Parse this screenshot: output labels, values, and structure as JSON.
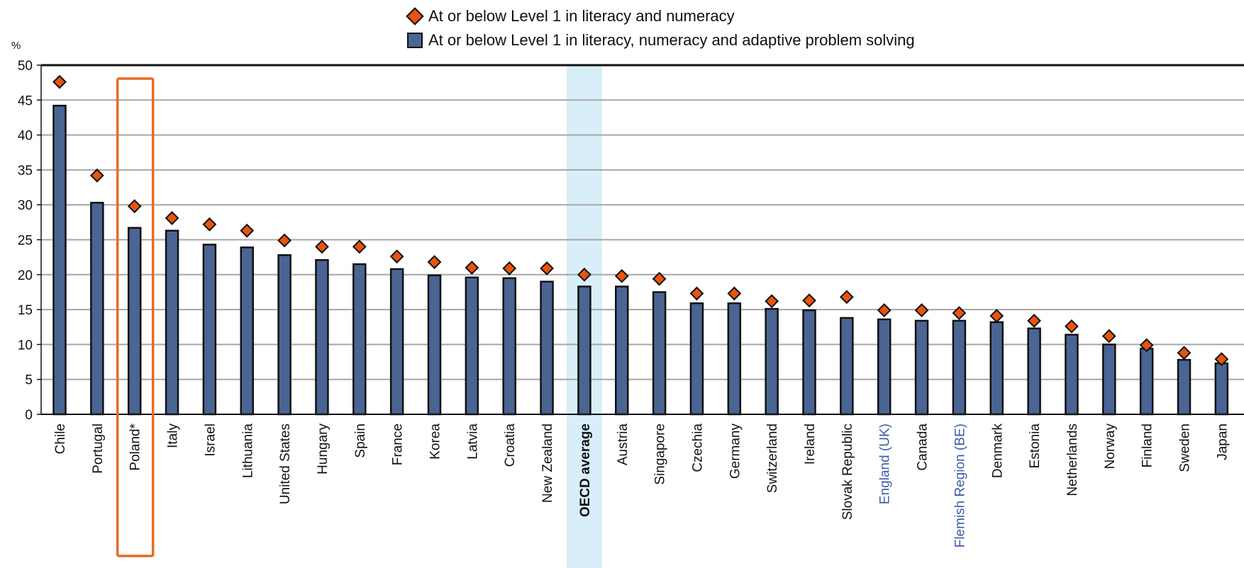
{
  "chart_data": {
    "type": "bar",
    "unit_label": "%",
    "ylim": [
      0,
      50
    ],
    "yticks": [
      0,
      5,
      10,
      15,
      20,
      25,
      30,
      35,
      40,
      45,
      50
    ],
    "grid": true,
    "legend_placement": "top-center",
    "highlighted_category": "Poland*",
    "average_category": "OECD average",
    "blue_label_categories": [
      "England (UK)",
      "Flemish Region (BE)"
    ],
    "categories": [
      "Chile",
      "Portugal",
      "Poland*",
      "Italy",
      "Israel",
      "Lithuania",
      "United States",
      "Hungary",
      "Spain",
      "France",
      "Korea",
      "Latvia",
      "Croatia",
      "New Zealand",
      "OECD average",
      "Austria",
      "Singapore",
      "Czechia",
      "Germany",
      "Switzerland",
      "Ireland",
      "Slovak Republic",
      "England (UK)",
      "Canada",
      "Flemish Region (BE)",
      "Denmark",
      "Estonia",
      "Netherlands",
      "Norway",
      "Finland",
      "Sweden",
      "Japan"
    ],
    "series": [
      {
        "name": "At or below Level 1 in literacy, numeracy and adaptive problem solving",
        "marker": "bar",
        "color": "#4a6593",
        "values": [
          44.2,
          30.3,
          26.7,
          26.3,
          24.3,
          23.9,
          22.8,
          22.1,
          21.5,
          20.8,
          19.9,
          19.6,
          19.5,
          19.0,
          18.3,
          18.3,
          17.5,
          15.9,
          15.9,
          15.1,
          14.9,
          13.8,
          13.6,
          13.4,
          13.4,
          13.2,
          12.3,
          11.4,
          10.0,
          9.4,
          7.8,
          7.3
        ]
      },
      {
        "name": "At or below Level 1 in literacy and numeracy",
        "marker": "diamond",
        "color": "#e8540d",
        "values": [
          47.6,
          34.2,
          29.8,
          28.1,
          27.2,
          26.3,
          24.9,
          24.0,
          24.0,
          22.6,
          21.8,
          21.0,
          20.9,
          20.9,
          20.0,
          19.8,
          19.4,
          17.3,
          17.3,
          16.2,
          16.3,
          16.8,
          14.9,
          14.9,
          14.5,
          14.1,
          13.4,
          12.6,
          11.2,
          9.9,
          8.8,
          7.9
        ]
      }
    ]
  }
}
